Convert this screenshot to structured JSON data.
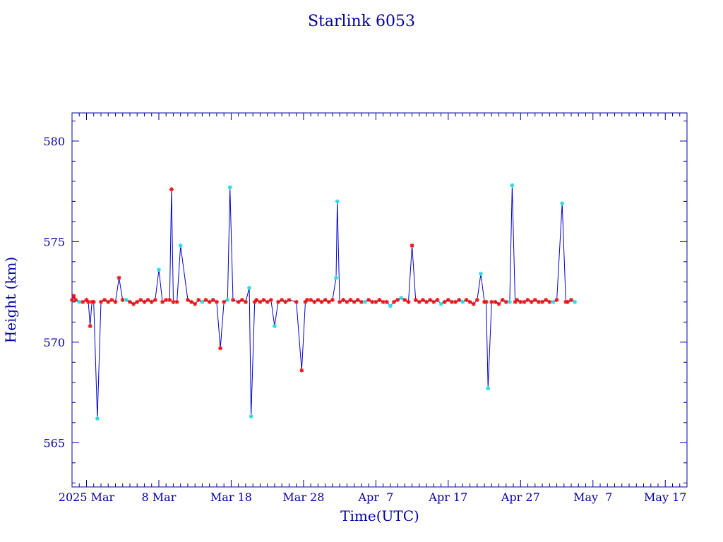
{
  "chart_data": {
    "type": "line",
    "title": "Starlink 6053",
    "xlabel": "Time(UTC)",
    "ylabel": "Height (km)",
    "x_unit": "date (2025, UTC)",
    "xlim": [
      "2025-02-24",
      "2025-05-20"
    ],
    "ylim": [
      562.8,
      581.4
    ],
    "y_ticks": [
      565,
      570,
      575,
      580
    ],
    "x_ticks": [
      {
        "date": "2025-02-26",
        "label": "2025 Mar"
      },
      {
        "date": "2025-03-08",
        "label": "8 Mar"
      },
      {
        "date": "2025-03-18",
        "label": "Mar 18"
      },
      {
        "date": "2025-03-28",
        "label": "Mar 28"
      },
      {
        "date": "2025-04-07",
        "label": "Apr  7"
      },
      {
        "date": "2025-04-17",
        "label": "Apr 17"
      },
      {
        "date": "2025-04-27",
        "label": "Apr 27"
      },
      {
        "date": "2025-05-07",
        "label": "May  7"
      },
      {
        "date": "2025-05-17",
        "label": "May 17"
      }
    ],
    "grid": false,
    "colors": {
      "line": "#0000cc",
      "marker_red": "#ee1111",
      "marker_cyan": "#22dddd",
      "text": "#0000a0",
      "frame": "#0000a0"
    },
    "series": [
      {
        "marker_style": "star",
        "points": [
          {
            "t": "2025-02-24T00:00",
            "h": 572.1,
            "m": "r"
          },
          {
            "t": "2025-02-24T06:00",
            "h": 572.3,
            "m": "r"
          },
          {
            "t": "2025-02-24T12:00",
            "h": 572.1,
            "m": "r"
          },
          {
            "t": "2025-02-25T00:00",
            "h": 572.0,
            "m": "c"
          },
          {
            "t": "2025-02-25T12:00",
            "h": 572.0,
            "m": "r"
          },
          {
            "t": "2025-02-26T00:00",
            "h": 572.1,
            "m": "r"
          },
          {
            "t": "2025-02-26T06:00",
            "h": 572.0,
            "m": "r"
          },
          {
            "t": "2025-02-26T12:00",
            "h": 570.8,
            "m": "r"
          },
          {
            "t": "2025-02-26T18:00",
            "h": 572.0,
            "m": "r"
          },
          {
            "t": "2025-02-27T00:00",
            "h": 572.0,
            "m": "r"
          },
          {
            "t": "2025-02-27T12:00",
            "h": 566.2,
            "m": "c"
          },
          {
            "t": "2025-02-28T00:00",
            "h": 572.0,
            "m": "r"
          },
          {
            "t": "2025-02-28T12:00",
            "h": 572.1,
            "m": "r"
          },
          {
            "t": "2025-03-01T00:00",
            "h": 572.0,
            "m": "r"
          },
          {
            "t": "2025-03-01T12:00",
            "h": 572.1,
            "m": "r"
          },
          {
            "t": "2025-03-02T00:00",
            "h": 572.0,
            "m": "r"
          },
          {
            "t": "2025-03-02T12:00",
            "h": 573.2,
            "m": "r"
          },
          {
            "t": "2025-03-03T00:00",
            "h": 572.1,
            "m": "r"
          },
          {
            "t": "2025-03-03T12:00",
            "h": 572.1,
            "m": "c"
          },
          {
            "t": "2025-03-04T00:00",
            "h": 572.0,
            "m": "r"
          },
          {
            "t": "2025-03-04T12:00",
            "h": 571.9,
            "m": "r"
          },
          {
            "t": "2025-03-05T00:00",
            "h": 572.0,
            "m": "r"
          },
          {
            "t": "2025-03-05T12:00",
            "h": 572.1,
            "m": "r"
          },
          {
            "t": "2025-03-06T00:00",
            "h": 572.0,
            "m": "r"
          },
          {
            "t": "2025-03-06T12:00",
            "h": 572.1,
            "m": "r"
          },
          {
            "t": "2025-03-07T00:00",
            "h": 572.0,
            "m": "r"
          },
          {
            "t": "2025-03-07T12:00",
            "h": 572.1,
            "m": "r"
          },
          {
            "t": "2025-03-08T00:00",
            "h": 573.6,
            "m": "c"
          },
          {
            "t": "2025-03-08T12:00",
            "h": 572.0,
            "m": "r"
          },
          {
            "t": "2025-03-09T00:00",
            "h": 572.1,
            "m": "r"
          },
          {
            "t": "2025-03-09T12:00",
            "h": 572.1,
            "m": "r"
          },
          {
            "t": "2025-03-09T18:00",
            "h": 577.6,
            "m": "r"
          },
          {
            "t": "2025-03-10T00:00",
            "h": 572.0,
            "m": "r"
          },
          {
            "t": "2025-03-10T12:00",
            "h": 572.0,
            "m": "r"
          },
          {
            "t": "2025-03-11T00:00",
            "h": 574.8,
            "m": "c"
          },
          {
            "t": "2025-03-12T00:00",
            "h": 572.1,
            "m": "r"
          },
          {
            "t": "2025-03-12T12:00",
            "h": 572.0,
            "m": "r"
          },
          {
            "t": "2025-03-13T00:00",
            "h": 571.9,
            "m": "r"
          },
          {
            "t": "2025-03-13T12:00",
            "h": 572.1,
            "m": "r"
          },
          {
            "t": "2025-03-14T00:00",
            "h": 572.0,
            "m": "c"
          },
          {
            "t": "2025-03-14T12:00",
            "h": 572.1,
            "m": "r"
          },
          {
            "t": "2025-03-15T00:00",
            "h": 572.0,
            "m": "r"
          },
          {
            "t": "2025-03-15T12:00",
            "h": 572.1,
            "m": "r"
          },
          {
            "t": "2025-03-16T00:00",
            "h": 572.0,
            "m": "r"
          },
          {
            "t": "2025-03-16T12:00",
            "h": 569.7,
            "m": "r"
          },
          {
            "t": "2025-03-17T00:00",
            "h": 572.0,
            "m": "r"
          },
          {
            "t": "2025-03-17T12:00",
            "h": 572.1,
            "m": "c"
          },
          {
            "t": "2025-03-17T20:00",
            "h": 577.7,
            "m": "c"
          },
          {
            "t": "2025-03-18T06:00",
            "h": 572.1,
            "m": "r"
          },
          {
            "t": "2025-03-19T00:00",
            "h": 572.0,
            "m": "r"
          },
          {
            "t": "2025-03-19T12:00",
            "h": 572.1,
            "m": "r"
          },
          {
            "t": "2025-03-20T00:00",
            "h": 572.0,
            "m": "r"
          },
          {
            "t": "2025-03-20T12:00",
            "h": 572.7,
            "m": "c"
          },
          {
            "t": "2025-03-20T18:00",
            "h": 566.3,
            "m": "c"
          },
          {
            "t": "2025-03-21T06:00",
            "h": 572.0,
            "m": "r"
          },
          {
            "t": "2025-03-21T12:00",
            "h": 572.1,
            "m": "r"
          },
          {
            "t": "2025-03-22T00:00",
            "h": 572.0,
            "m": "r"
          },
          {
            "t": "2025-03-22T12:00",
            "h": 572.1,
            "m": "r"
          },
          {
            "t": "2025-03-23T00:00",
            "h": 572.0,
            "m": "r"
          },
          {
            "t": "2025-03-23T12:00",
            "h": 572.1,
            "m": "r"
          },
          {
            "t": "2025-03-24T00:00",
            "h": 570.8,
            "m": "c"
          },
          {
            "t": "2025-03-24T12:00",
            "h": 572.0,
            "m": "r"
          },
          {
            "t": "2025-03-25T00:00",
            "h": 572.1,
            "m": "r"
          },
          {
            "t": "2025-03-25T12:00",
            "h": 572.0,
            "m": "r"
          },
          {
            "t": "2025-03-26T00:00",
            "h": 572.1,
            "m": "r"
          },
          {
            "t": "2025-03-27T00:00",
            "h": 572.0,
            "m": "r"
          },
          {
            "t": "2025-03-27T18:00",
            "h": 568.6,
            "m": "r"
          },
          {
            "t": "2025-03-28T06:00",
            "h": 572.0,
            "m": "r"
          },
          {
            "t": "2025-03-28T12:00",
            "h": 572.1,
            "m": "r"
          },
          {
            "t": "2025-03-29T00:00",
            "h": 572.1,
            "m": "r"
          },
          {
            "t": "2025-03-29T12:00",
            "h": 572.0,
            "m": "r"
          },
          {
            "t": "2025-03-30T00:00",
            "h": 572.1,
            "m": "r"
          },
          {
            "t": "2025-03-30T12:00",
            "h": 572.0,
            "m": "r"
          },
          {
            "t": "2025-03-31T00:00",
            "h": 572.1,
            "m": "r"
          },
          {
            "t": "2025-03-31T12:00",
            "h": 572.0,
            "m": "r"
          },
          {
            "t": "2025-04-01T00:00",
            "h": 572.1,
            "m": "r"
          },
          {
            "t": "2025-04-01T12:00",
            "h": 573.2,
            "m": "c"
          },
          {
            "t": "2025-04-01T16:00",
            "h": 577.0,
            "m": "c"
          },
          {
            "t": "2025-04-02T00:00",
            "h": 572.0,
            "m": "r"
          },
          {
            "t": "2025-04-02T12:00",
            "h": 572.1,
            "m": "r"
          },
          {
            "t": "2025-04-03T00:00",
            "h": 572.0,
            "m": "r"
          },
          {
            "t": "2025-04-03T12:00",
            "h": 572.1,
            "m": "r"
          },
          {
            "t": "2025-04-04T00:00",
            "h": 572.0,
            "m": "r"
          },
          {
            "t": "2025-04-04T12:00",
            "h": 572.1,
            "m": "r"
          },
          {
            "t": "2025-04-05T00:00",
            "h": 572.0,
            "m": "r"
          },
          {
            "t": "2025-04-05T12:00",
            "h": 572.0,
            "m": "c"
          },
          {
            "t": "2025-04-06T00:00",
            "h": 572.1,
            "m": "r"
          },
          {
            "t": "2025-04-06T12:00",
            "h": 572.0,
            "m": "r"
          },
          {
            "t": "2025-04-07T00:00",
            "h": 572.0,
            "m": "r"
          },
          {
            "t": "2025-04-07T12:00",
            "h": 572.1,
            "m": "r"
          },
          {
            "t": "2025-04-08T00:00",
            "h": 572.0,
            "m": "r"
          },
          {
            "t": "2025-04-08T12:00",
            "h": 572.0,
            "m": "r"
          },
          {
            "t": "2025-04-09T00:00",
            "h": 571.8,
            "m": "c"
          },
          {
            "t": "2025-04-09T12:00",
            "h": 572.0,
            "m": "r"
          },
          {
            "t": "2025-04-10T00:00",
            "h": 572.1,
            "m": "r"
          },
          {
            "t": "2025-04-10T12:00",
            "h": 572.2,
            "m": "c"
          },
          {
            "t": "2025-04-11T00:00",
            "h": 572.1,
            "m": "r"
          },
          {
            "t": "2025-04-11T12:00",
            "h": 572.0,
            "m": "r"
          },
          {
            "t": "2025-04-12T00:00",
            "h": 574.8,
            "m": "r"
          },
          {
            "t": "2025-04-12T12:00",
            "h": 572.1,
            "m": "r"
          },
          {
            "t": "2025-04-13T00:00",
            "h": 572.0,
            "m": "r"
          },
          {
            "t": "2025-04-13T12:00",
            "h": 572.1,
            "m": "r"
          },
          {
            "t": "2025-04-14T00:00",
            "h": 572.0,
            "m": "r"
          },
          {
            "t": "2025-04-14T12:00",
            "h": 572.1,
            "m": "r"
          },
          {
            "t": "2025-04-15T00:00",
            "h": 572.0,
            "m": "r"
          },
          {
            "t": "2025-04-15T12:00",
            "h": 572.1,
            "m": "r"
          },
          {
            "t": "2025-04-16T00:00",
            "h": 571.9,
            "m": "c"
          },
          {
            "t": "2025-04-16T12:00",
            "h": 572.0,
            "m": "r"
          },
          {
            "t": "2025-04-17T00:00",
            "h": 572.1,
            "m": "r"
          },
          {
            "t": "2025-04-17T12:00",
            "h": 572.0,
            "m": "r"
          },
          {
            "t": "2025-04-18T00:00",
            "h": 572.0,
            "m": "r"
          },
          {
            "t": "2025-04-18T12:00",
            "h": 572.1,
            "m": "r"
          },
          {
            "t": "2025-04-19T00:00",
            "h": 572.0,
            "m": "c"
          },
          {
            "t": "2025-04-19T12:00",
            "h": 572.1,
            "m": "r"
          },
          {
            "t": "2025-04-20T00:00",
            "h": 572.0,
            "m": "r"
          },
          {
            "t": "2025-04-20T12:00",
            "h": 571.9,
            "m": "r"
          },
          {
            "t": "2025-04-21T00:00",
            "h": 572.1,
            "m": "r"
          },
          {
            "t": "2025-04-21T12:00",
            "h": 573.4,
            "m": "c"
          },
          {
            "t": "2025-04-22T00:00",
            "h": 572.0,
            "m": "r"
          },
          {
            "t": "2025-04-22T06:00",
            "h": 572.0,
            "m": "r"
          },
          {
            "t": "2025-04-22T12:00",
            "h": 567.7,
            "m": "c"
          },
          {
            "t": "2025-04-23T00:00",
            "h": 572.0,
            "m": "r"
          },
          {
            "t": "2025-04-23T12:00",
            "h": 572.0,
            "m": "r"
          },
          {
            "t": "2025-04-24T00:00",
            "h": 571.9,
            "m": "r"
          },
          {
            "t": "2025-04-24T12:00",
            "h": 572.1,
            "m": "r"
          },
          {
            "t": "2025-04-25T00:00",
            "h": 572.0,
            "m": "r"
          },
          {
            "t": "2025-04-25T12:00",
            "h": 572.0,
            "m": "c"
          },
          {
            "t": "2025-04-25T20:00",
            "h": 577.8,
            "m": "c"
          },
          {
            "t": "2025-04-26T06:00",
            "h": 572.0,
            "m": "r"
          },
          {
            "t": "2025-04-26T12:00",
            "h": 572.1,
            "m": "r"
          },
          {
            "t": "2025-04-27T00:00",
            "h": 572.0,
            "m": "r"
          },
          {
            "t": "2025-04-27T12:00",
            "h": 572.0,
            "m": "r"
          },
          {
            "t": "2025-04-28T00:00",
            "h": 572.1,
            "m": "r"
          },
          {
            "t": "2025-04-28T12:00",
            "h": 572.0,
            "m": "r"
          },
          {
            "t": "2025-04-29T00:00",
            "h": 572.1,
            "m": "r"
          },
          {
            "t": "2025-04-29T12:00",
            "h": 572.0,
            "m": "r"
          },
          {
            "t": "2025-04-30T00:00",
            "h": 572.0,
            "m": "r"
          },
          {
            "t": "2025-04-30T12:00",
            "h": 572.1,
            "m": "r"
          },
          {
            "t": "2025-05-01T00:00",
            "h": 572.0,
            "m": "r"
          },
          {
            "t": "2025-05-01T12:00",
            "h": 572.0,
            "m": "c"
          },
          {
            "t": "2025-05-02T00:00",
            "h": 572.1,
            "m": "r"
          },
          {
            "t": "2025-05-02T18:00",
            "h": 576.9,
            "m": "c"
          },
          {
            "t": "2025-05-03T06:00",
            "h": 572.0,
            "m": "r"
          },
          {
            "t": "2025-05-03T12:00",
            "h": 572.0,
            "m": "r"
          },
          {
            "t": "2025-05-04T00:00",
            "h": 572.1,
            "m": "r"
          },
          {
            "t": "2025-05-04T12:00",
            "h": 572.0,
            "m": "c"
          }
        ]
      }
    ]
  }
}
